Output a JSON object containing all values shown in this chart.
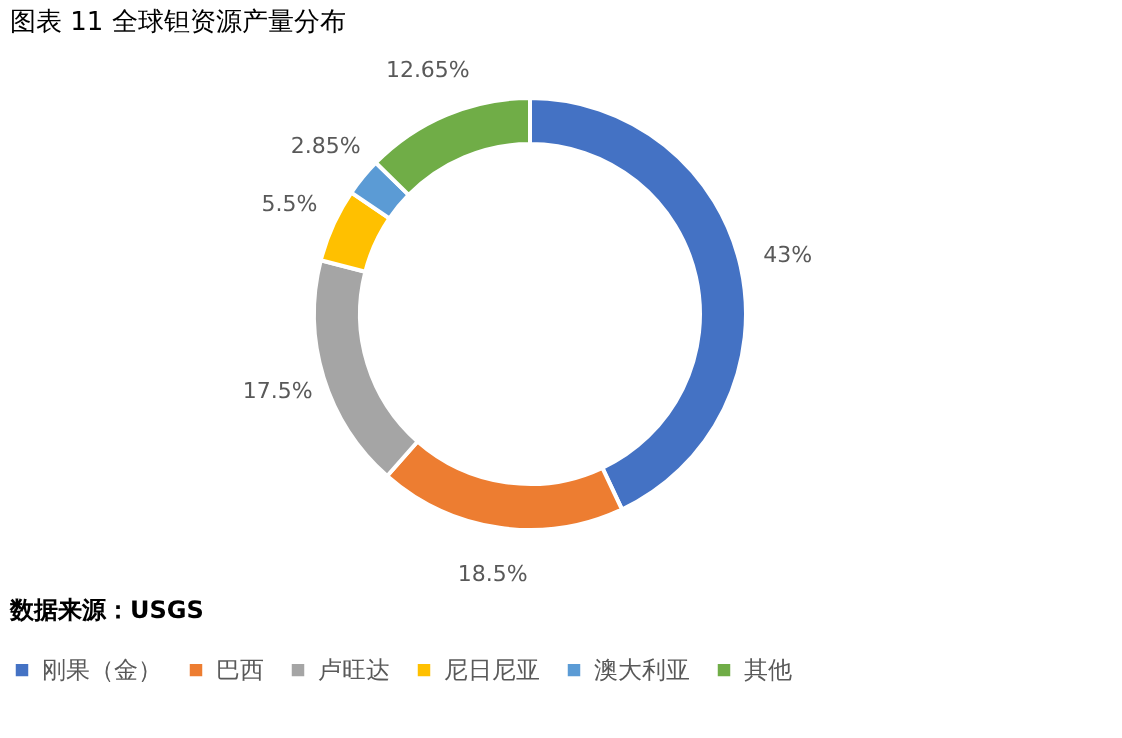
{
  "chart_data": {
    "type": "donut",
    "title": "图表 11 全球钽资源产量分布",
    "categories": [
      "刚果（金）",
      "巴西",
      "卢旺达",
      "尼日尼亚",
      "澳大利亚",
      "其他"
    ],
    "values": [
      43,
      18.5,
      17.5,
      5.5,
      2.85,
      12.65
    ],
    "colors": [
      "#4472c4",
      "#ed7d31",
      "#a5a5a5",
      "#ffc000",
      "#5b9bd5",
      "#70ad47"
    ],
    "value_labels": [
      "43%",
      "18.5%",
      "17.5%",
      "5.5%",
      "2.85%",
      "12.65%"
    ],
    "legend": "bottom",
    "annotations": [
      "数据来源：USGS"
    ]
  }
}
